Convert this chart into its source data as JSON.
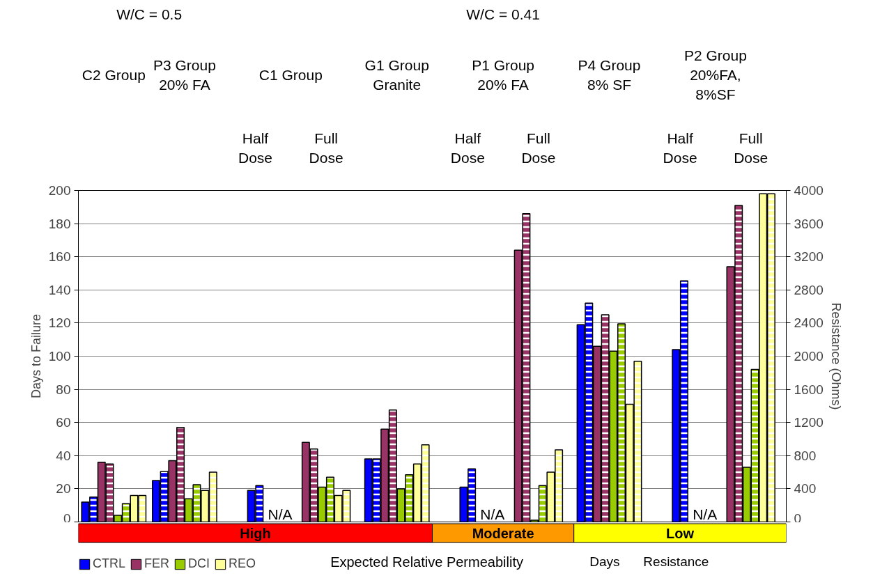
{
  "chart_data": {
    "type": "bar",
    "categories": [
      null,
      null,
      null,
      null,
      null,
      null,
      null,
      null,
      null,
      null
    ],
    "series": [
      {
        "name": "CTRL",
        "color": "#0000ff",
        "values": [
          12,
          25,
          19,
          null,
          38,
          21,
          null,
          119,
          104,
          null
        ]
      },
      {
        "color": "#0000ff",
        "axis": "y2",
        "values": [
          300,
          610,
          440,
          null,
          760,
          640,
          null,
          2640,
          2910,
          null
        ]
      },
      {
        "name": "FER",
        "color": "#993366",
        "values": [
          36,
          37,
          null,
          48,
          56,
          null,
          164,
          106,
          null,
          154
        ]
      },
      {
        "color": "#993366",
        "axis": "y2",
        "values": [
          700,
          1140,
          null,
          880,
          1350,
          null,
          3720,
          2500,
          null,
          3820
        ]
      },
      {
        "name": "DCI",
        "color": "#99cc00",
        "values": [
          4,
          14,
          null,
          21,
          20,
          null,
          1,
          103,
          null,
          33
        ]
      },
      {
        "color": "#99cc00",
        "axis": "y2",
        "values": [
          220,
          450,
          null,
          540,
          570,
          null,
          440,
          2390,
          null,
          1840
        ]
      },
      {
        "name": "REO",
        "color": "#ffff99",
        "values": [
          16,
          19,
          null,
          16,
          35,
          null,
          30,
          71,
          null,
          198
        ]
      },
      {
        "color": "#ffff99",
        "axis": "y2",
        "values": [
          320,
          600,
          null,
          380,
          930,
          null,
          870,
          1940,
          null,
          3960
        ]
      }
    ],
    "ylabel": "Days to Failure",
    "y2label": "Resistance (Ohms)",
    "ylim": [
      0,
      200
    ],
    "yticks": [
      0,
      20,
      40,
      60,
      80,
      100,
      120,
      140,
      160,
      180,
      200
    ],
    "y2lim": [
      0,
      4000
    ],
    "y2ticks": [
      0,
      400,
      800,
      1200,
      1600,
      2000,
      2400,
      2800,
      3200,
      3600,
      4000
    ],
    "grid": "y",
    "legend": "bottom",
    "annotations": [
      "W/C = 0.5",
      "W/C = 0.41",
      "C2 Group",
      "P3 Group\n20% FA",
      "C1 Group",
      "G1 Group\nGranite",
      "P1 Group\n20% FA",
      "P4 Group\n8% SF",
      "P2 Group\n20%FA,\n8%SF",
      "Half\nDose",
      "Full\nDose",
      "Half\nDose",
      "Full\nDose",
      "Half\nDose",
      "Full\nDose",
      "N/A",
      "N/A",
      "N/A",
      "Expected Relative Permeability",
      "Days",
      "Resistance",
      "High",
      "Moderate",
      "Low"
    ]
  }
}
